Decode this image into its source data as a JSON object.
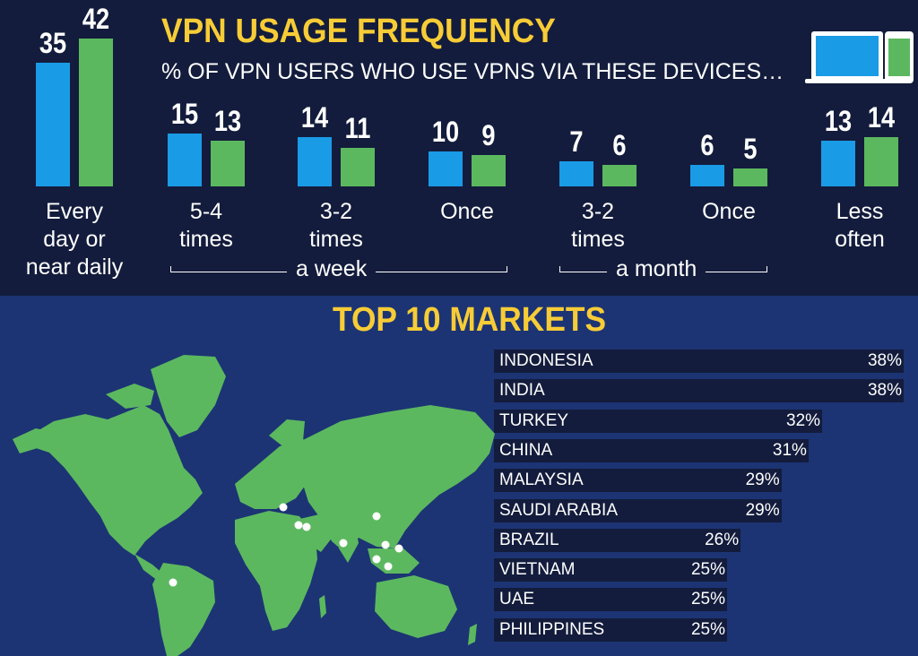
{
  "frequency": {
    "title": "VPN USAGE FREQUENCY",
    "subtitle": "% OF VPN USERS WHO USE VPNS VIA THESE DEVICES…",
    "bracket_week": "a week",
    "bracket_month": "a month",
    "colors": {
      "computer": "#1a9be6",
      "mobile": "#5cb85f",
      "background": "#131c3c"
    }
  },
  "markets": {
    "title": "TOP 10 MARKETS",
    "colors": {
      "background": "#1c3474",
      "land": "#5cb85f",
      "row": "#131c3c",
      "dot": "#ffffff"
    }
  },
  "chart_data": [
    {
      "type": "bar",
      "title": "VPN USAGE FREQUENCY",
      "subtitle": "% OF VPN USERS WHO USE VPNS VIA THESE DEVICES…",
      "categories": [
        "Every\nday or\nnear daily",
        "5-4\ntimes",
        "3-2\ntimes",
        "Once",
        "3-2\ntimes",
        "Once",
        "Less\noften"
      ],
      "series": [
        {
          "icon": "laptop-icon",
          "color": "#1a9be6",
          "values": [
            35,
            15,
            14,
            10,
            7,
            6,
            13
          ]
        },
        {
          "icon": "phone-icon",
          "color": "#5cb85f",
          "values": [
            42,
            13,
            11,
            9,
            6,
            5,
            14
          ]
        }
      ],
      "groups": [
        {
          "label": "a week",
          "categories": [
            1,
            2,
            3
          ]
        },
        {
          "label": "a month",
          "categories": [
            4,
            5
          ]
        }
      ],
      "ylim": [
        0,
        42
      ]
    },
    {
      "type": "bar",
      "orientation": "horizontal",
      "title": "TOP 10 MARKETS",
      "categories": [
        "INDONESIA",
        "INDIA",
        "TURKEY",
        "CHINA",
        "MALAYSIA",
        "SAUDI ARABIA",
        "BRAZIL",
        "VIETNAM",
        "UAE",
        "PHILIPPINES"
      ],
      "values": [
        38,
        38,
        32,
        31,
        29,
        29,
        26,
        25,
        25,
        25
      ],
      "value_labels": [
        "38%",
        "38%",
        "32%",
        "31%",
        "29%",
        "29%",
        "26%",
        "25%",
        "25%",
        "25%"
      ],
      "map_markers": [
        "INDONESIA",
        "INDIA",
        "TURKEY",
        "CHINA",
        "MALAYSIA",
        "SAUDI ARABIA",
        "BRAZIL",
        "VIETNAM",
        "UAE",
        "PHILIPPINES"
      ]
    }
  ]
}
